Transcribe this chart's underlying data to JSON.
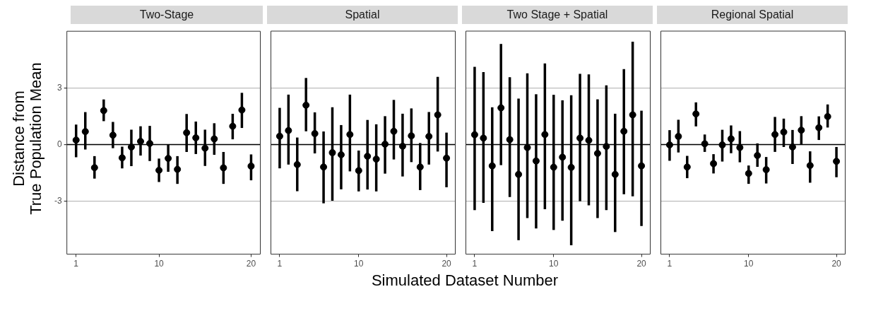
{
  "chart_data": [
    {
      "type": "scatter",
      "title": "Two-Stage",
      "ylabel": "Distance from\nTrue Population Mean",
      "color": "#000000",
      "marker": "circle",
      "grid": "y",
      "xlim": [
        0,
        21
      ],
      "xticks": [
        1,
        10,
        20
      ],
      "ylim": [
        -5.8,
        6
      ],
      "yticks": [
        -3,
        0,
        3
      ],
      "ref_lines": [
        {
          "axis": "y",
          "value": 0,
          "color": "#000000"
        }
      ],
      "x": [
        1,
        2,
        3,
        4,
        5,
        6,
        7,
        8,
        9,
        10,
        11,
        12,
        13,
        14,
        15,
        16,
        17,
        18,
        19,
        20
      ],
      "values": [
        0.24,
        0.69,
        -1.22,
        1.8,
        0.5,
        -0.7,
        -0.13,
        0.17,
        0.06,
        -1.36,
        -0.73,
        -1.31,
        0.63,
        0.36,
        -0.19,
        0.3,
        -1.23,
        0.97,
        1.83,
        -1.14
      ],
      "errors": [
        [
          -0.67,
          1.06
        ],
        [
          -0.26,
          1.72
        ],
        [
          -1.8,
          -0.61
        ],
        [
          1.24,
          2.39
        ],
        [
          -0.19,
          1.2
        ],
        [
          -1.26,
          -0.11
        ],
        [
          -1.14,
          0.79
        ],
        [
          -0.58,
          0.97
        ],
        [
          -0.87,
          0.99
        ],
        [
          -1.98,
          -0.74
        ],
        [
          -1.44,
          0
        ],
        [
          -2.08,
          -0.61
        ],
        [
          -0.39,
          1.62
        ],
        [
          -0.5,
          1.22
        ],
        [
          -1.13,
          0.79
        ],
        [
          -0.54,
          1.13
        ],
        [
          -2.08,
          -0.39
        ],
        [
          0.28,
          1.63
        ],
        [
          0.88,
          2.74
        ],
        [
          -1.89,
          -0.52
        ]
      ]
    },
    {
      "type": "scatter",
      "title": "Spatial",
      "color": "#000000",
      "marker": "circle",
      "grid": "y",
      "tick_labels": "x",
      "xlim": [
        0,
        21
      ],
      "xticks": [
        1,
        10,
        20
      ],
      "ylim": [
        -5.8,
        6
      ],
      "yticks": [
        -3,
        0,
        3
      ],
      "ref_lines": [
        {
          "axis": "y",
          "value": 0,
          "color": "#000000"
        }
      ],
      "x": [
        1,
        2,
        3,
        4,
        5,
        6,
        7,
        8,
        9,
        10,
        11,
        12,
        13,
        14,
        15,
        16,
        17,
        18,
        19,
        20
      ],
      "values": [
        0.44,
        0.74,
        -1.06,
        2.08,
        0.58,
        -1.19,
        -0.43,
        -0.54,
        0.53,
        -1.38,
        -0.62,
        -0.77,
        0.02,
        0.7,
        -0.09,
        0.46,
        -1.19,
        0.43,
        1.57,
        -0.72
      ],
      "errors": [
        [
          -1.26,
          1.94
        ],
        [
          -1.06,
          2.64
        ],
        [
          -2.47,
          0.37
        ],
        [
          0.7,
          3.52
        ],
        [
          -0.47,
          1.7
        ],
        [
          -3.11,
          0.69
        ],
        [
          -2.97,
          1.97
        ],
        [
          -2.37,
          1.03
        ],
        [
          -1.42,
          2.64
        ],
        [
          -2.48,
          -0.32
        ],
        [
          -2.38,
          1.3
        ],
        [
          -2.48,
          1.07
        ],
        [
          -1.54,
          1.5
        ],
        [
          -0.79,
          2.36
        ],
        [
          -1.69,
          1.63
        ],
        [
          -0.93,
          1.91
        ],
        [
          -2.41,
          0.08
        ],
        [
          -1.06,
          1.72
        ],
        [
          -0.37,
          3.58
        ],
        [
          -2.26,
          0.63
        ]
      ]
    },
    {
      "type": "scatter",
      "title": "Two Stage + Spatial",
      "xlabel": "Simulated Dataset Number",
      "color": "#000000",
      "marker": "circle",
      "grid": "y",
      "tick_labels": "x",
      "xlim": [
        0,
        21
      ],
      "xticks": [
        1,
        10,
        20
      ],
      "ylim": [
        -5.8,
        6
      ],
      "yticks": [
        -3,
        0,
        3
      ],
      "ref_lines": [
        {
          "axis": "y",
          "value": 0,
          "color": "#000000"
        }
      ],
      "x": [
        1,
        2,
        3,
        4,
        5,
        6,
        7,
        8,
        9,
        10,
        11,
        12,
        13,
        14,
        15,
        16,
        17,
        18,
        19,
        20
      ],
      "values": [
        0.52,
        0.34,
        -1.13,
        1.94,
        0.26,
        -1.58,
        -0.16,
        -0.87,
        0.53,
        -1.2,
        -0.67,
        -1.21,
        0.34,
        0.22,
        -0.47,
        -0.1,
        -1.58,
        0.7,
        1.57,
        -1.13
      ],
      "errors": [
        [
          -3.47,
          4.11
        ],
        [
          -3.09,
          3.83
        ],
        [
          -4.58,
          1.97
        ],
        [
          -1.09,
          5.32
        ],
        [
          -2.78,
          3.56
        ],
        [
          -5.06,
          2.43
        ],
        [
          -3.89,
          3.77
        ],
        [
          -4.44,
          2.66
        ],
        [
          -3.42,
          4.29
        ],
        [
          -4.52,
          2.63
        ],
        [
          -4.03,
          2.34
        ],
        [
          -5.33,
          2.61
        ],
        [
          -3.0,
          3.74
        ],
        [
          -3.22,
          3.71
        ],
        [
          -3.89,
          2.39
        ],
        [
          -3.47,
          3.13
        ],
        [
          -4.63,
          1.63
        ],
        [
          -2.63,
          3.99
        ],
        [
          -2.74,
          5.44
        ],
        [
          -4.31,
          1.79
        ]
      ]
    },
    {
      "type": "scatter",
      "title": "Regional Spatial",
      "color": "#000000",
      "marker": "circle",
      "grid": "y",
      "tick_labels": "x",
      "xlim": [
        0,
        21
      ],
      "xticks": [
        1,
        10,
        20
      ],
      "ylim": [
        -5.8,
        6
      ],
      "yticks": [
        -3,
        0,
        3
      ],
      "ref_lines": [
        {
          "axis": "y",
          "value": 0,
          "color": "#000000"
        }
      ],
      "x": [
        1,
        2,
        3,
        4,
        5,
        6,
        7,
        8,
        9,
        10,
        11,
        12,
        13,
        14,
        15,
        16,
        17,
        18,
        19,
        20
      ],
      "values": [
        -0.02,
        0.43,
        -1.19,
        1.62,
        0.04,
        -1.01,
        -0.02,
        0.3,
        -0.16,
        -1.53,
        -0.58,
        -1.33,
        0.53,
        0.66,
        -0.13,
        0.76,
        -1.11,
        0.89,
        1.48,
        -0.89
      ],
      "errors": [
        [
          -0.86,
          0.76
        ],
        [
          -0.42,
          1.31
        ],
        [
          -1.78,
          -0.6
        ],
        [
          0.96,
          2.23
        ],
        [
          -0.39,
          0.53
        ],
        [
          -1.53,
          -0.51
        ],
        [
          -0.9,
          0.78
        ],
        [
          -0.46,
          1.01
        ],
        [
          -0.94,
          0.71
        ],
        [
          -2.08,
          -1.11
        ],
        [
          -1.18,
          0.06
        ],
        [
          -2.06,
          -0.66
        ],
        [
          -0.39,
          1.46
        ],
        [
          -0.13,
          1.37
        ],
        [
          -1.03,
          0.77
        ],
        [
          -0.02,
          1.5
        ],
        [
          -2.02,
          -0.36
        ],
        [
          0.24,
          1.49
        ],
        [
          0.9,
          2.12
        ],
        [
          -1.73,
          -0.13
        ]
      ]
    }
  ]
}
